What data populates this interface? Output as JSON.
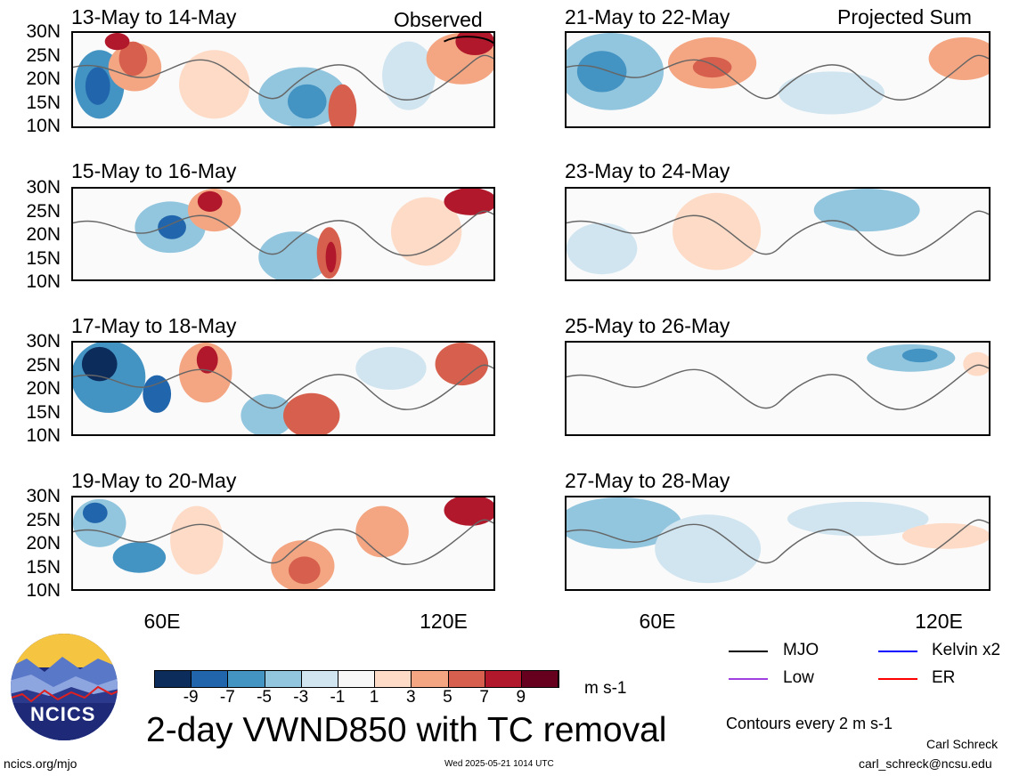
{
  "panels": {
    "left": [
      {
        "title": "13-May to 14-May",
        "tag": "Observed"
      },
      {
        "title": "15-May to 16-May",
        "tag": ""
      },
      {
        "title": "17-May to 18-May",
        "tag": ""
      },
      {
        "title": "19-May to 20-May",
        "tag": ""
      }
    ],
    "right": [
      {
        "title": "21-May to 22-May",
        "tag": "Projected Sum"
      },
      {
        "title": "23-May to 24-May",
        "tag": ""
      },
      {
        "title": "25-May to 26-May",
        "tag": ""
      },
      {
        "title": "27-May to 28-May",
        "tag": ""
      }
    ]
  },
  "lat_labels": [
    "30N",
    "25N",
    "20N",
    "15N",
    "10N"
  ],
  "lon_labels": [
    "60E",
    "120E"
  ],
  "colorbar": {
    "colors": [
      "#0c2c5c",
      "#2166ac",
      "#4393c3",
      "#92c5de",
      "#d1e5f0",
      "#f7f7f7",
      "#fddbc7",
      "#f4a582",
      "#d6604d",
      "#b2182b",
      "#67001f"
    ],
    "labels": [
      "-9",
      "-7",
      "-5",
      "-3",
      "-1",
      "1",
      "3",
      "5",
      "7",
      "9"
    ],
    "units": "m s-1"
  },
  "legend": {
    "items": [
      {
        "label": "MJO",
        "color": "#000000"
      },
      {
        "label": "Kelvin x2",
        "color": "#0000ff"
      },
      {
        "label": "Low",
        "color": "#a040e0"
      },
      {
        "label": "ER",
        "color": "#ff0000"
      }
    ],
    "contour_note": "Contours every 2 m s-1"
  },
  "main_title": "2-day VWND850 with TC removal",
  "logo_text": "NCICS",
  "footer": {
    "url": "ncics.org/mjo",
    "timestamp": "Wed 2025-05-21 1014 UTC",
    "author": "Carl Schreck",
    "email": "carl_schreck@ncsu.edu"
  }
}
